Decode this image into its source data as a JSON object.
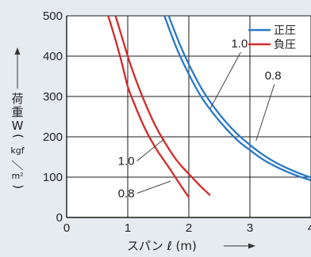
{
  "chart_data": {
    "type": "line",
    "title": "",
    "xlabel": "スパン ℓ (m)",
    "ylabel": {
      "main": "荷重W",
      "paren_open": "(",
      "unit_top": "kgf",
      "unit_bottom": "m²",
      "paren_close": ")"
    },
    "xlim": [
      0,
      4
    ],
    "ylim": [
      0,
      500
    ],
    "x_ticks": [
      "0",
      "1",
      "2",
      "3",
      "4"
    ],
    "y_ticks": [
      "0",
      "100",
      "200",
      "300",
      "400",
      "500"
    ],
    "grid": true,
    "legend_position": "top-right",
    "legend": [
      {
        "label": "正圧",
        "color": "#2a78c8"
      },
      {
        "label": "負圧",
        "color": "#d42a2a"
      }
    ],
    "series": [
      {
        "group": "正圧",
        "name": "",
        "color": "#2a78c8",
        "points": [
          [
            1.6,
            500
          ],
          [
            1.8,
            420
          ],
          [
            2.0,
            355
          ],
          [
            2.2,
            300
          ],
          [
            2.4,
            258
          ],
          [
            2.6,
            222
          ],
          [
            2.8,
            191
          ],
          [
            3.0,
            167
          ],
          [
            3.2,
            145
          ],
          [
            3.4,
            128
          ],
          [
            3.6,
            114
          ],
          [
            3.8,
            102
          ],
          [
            4.0,
            92
          ]
        ]
      },
      {
        "group": "正圧",
        "name": "",
        "color": "#2a78c8",
        "points": [
          [
            1.67,
            500
          ],
          [
            1.85,
            430
          ],
          [
            2.0,
            380
          ],
          [
            2.2,
            322
          ],
          [
            2.4,
            276
          ],
          [
            2.6,
            238
          ],
          [
            2.8,
            206
          ],
          [
            3.0,
            180
          ],
          [
            3.2,
            157
          ],
          [
            3.4,
            138
          ],
          [
            3.6,
            123
          ],
          [
            3.8,
            110
          ],
          [
            4.0,
            99
          ]
        ]
      },
      {
        "group": "負圧",
        "name": "",
        "color": "#d42a2a",
        "points": [
          [
            0.68,
            500
          ],
          [
            0.8,
            440
          ],
          [
            0.9,
            385
          ],
          [
            1.0,
            325
          ],
          [
            1.1,
            285
          ],
          [
            1.2,
            248
          ],
          [
            1.3,
            215
          ],
          [
            1.4,
            187
          ],
          [
            1.5,
            162
          ],
          [
            1.6,
            140
          ],
          [
            1.7,
            118
          ],
          [
            1.8,
            95
          ],
          [
            1.9,
            72
          ],
          [
            2.0,
            50
          ]
        ]
      },
      {
        "group": "負圧",
        "name": "",
        "color": "#d42a2a",
        "points": [
          [
            0.8,
            500
          ],
          [
            0.9,
            450
          ],
          [
            1.0,
            400
          ],
          [
            1.1,
            355
          ],
          [
            1.2,
            315
          ],
          [
            1.3,
            278
          ],
          [
            1.4,
            244
          ],
          [
            1.5,
            214
          ],
          [
            1.6,
            188
          ],
          [
            1.7,
            164
          ],
          [
            1.8,
            142
          ],
          [
            1.9,
            124
          ],
          [
            2.0,
            108
          ],
          [
            2.1,
            92
          ],
          [
            2.2,
            76
          ],
          [
            2.3,
            62
          ],
          [
            2.35,
            55
          ]
        ]
      }
    ],
    "annotations": [
      {
        "text": "1.0",
        "leader_from": [
          2.85,
          410
        ],
        "leader_to": [
          2.35,
          270
        ]
      },
      {
        "text": "0.8",
        "leader_from": [
          3.4,
          330
        ],
        "leader_to": [
          3.1,
          190
        ]
      },
      {
        "text": "1.0",
        "leader_from": [
          1.15,
          140
        ],
        "leader_to": [
          1.6,
          195
        ]
      },
      {
        "text": "0.8",
        "leader_from": [
          1.15,
          60
        ],
        "leader_to": [
          1.7,
          90
        ]
      }
    ]
  }
}
